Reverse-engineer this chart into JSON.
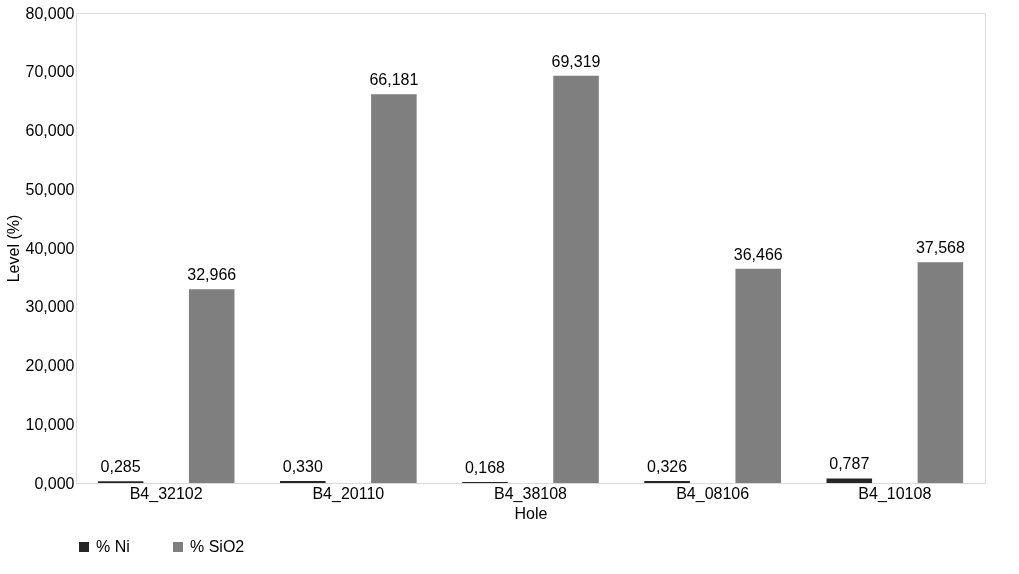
{
  "chart_data": {
    "type": "bar",
    "xlabel": "Hole",
    "ylabel": "Level (%)",
    "categories": [
      "B4_32102",
      "B4_20110",
      "B4_38108",
      "B4_08106",
      "B4_10108"
    ],
    "series": [
      {
        "name": "% Ni",
        "color": "#262626",
        "values": [
          0.285,
          0.33,
          0.168,
          0.326,
          0.787
        ],
        "value_labels": [
          "0,285",
          "0,330",
          "0,168",
          "0,326",
          "0,787"
        ]
      },
      {
        "name": "% SiO2",
        "color": "#7f7f7f",
        "values": [
          32.966,
          66.181,
          69.319,
          36.466,
          37.568
        ],
        "value_labels": [
          "32,966",
          "66,181",
          "69,319",
          "36,466",
          "37,568"
        ]
      }
    ],
    "ylim": [
      0,
      80
    ],
    "yticks": [
      {
        "value": 0,
        "label": "0,000"
      },
      {
        "value": 10,
        "label": "10,000"
      },
      {
        "value": 20,
        "label": "20,000"
      },
      {
        "value": 30,
        "label": "30,000"
      },
      {
        "value": 40,
        "label": "40,000"
      },
      {
        "value": 50,
        "label": "50,000"
      },
      {
        "value": 60,
        "label": "60,000"
      },
      {
        "value": 70,
        "label": "70,000"
      },
      {
        "value": 80,
        "label": "80,000"
      }
    ],
    "grid": false,
    "legend": "bottom"
  }
}
